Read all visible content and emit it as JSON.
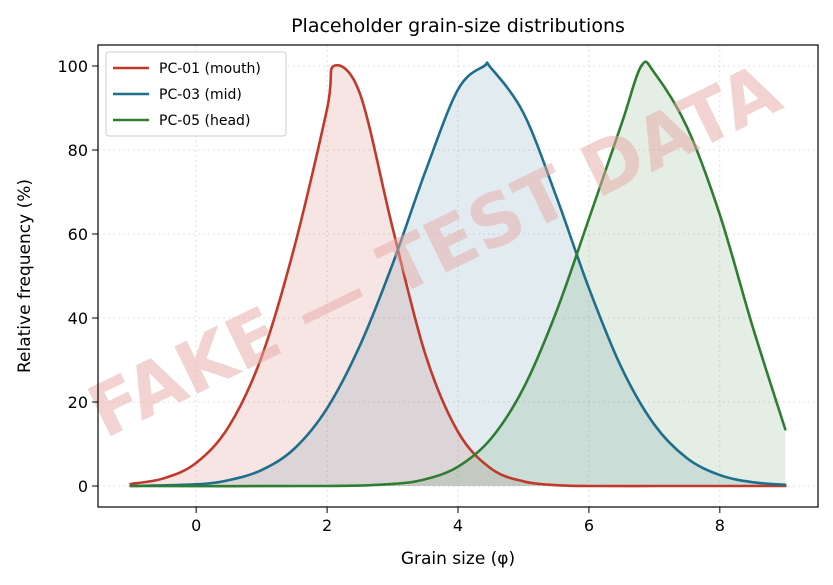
{
  "chart_data": {
    "type": "area",
    "title": "Placeholder grain-size distributions",
    "xlabel": "Grain size (φ)",
    "ylabel": "Relative frequency (%)",
    "xlim": [
      -1.5,
      9.5
    ],
    "ylim": [
      -5,
      105
    ],
    "xticks": [
      0,
      2,
      4,
      6,
      8
    ],
    "yticks": [
      0,
      20,
      40,
      60,
      80,
      100
    ],
    "x_range": [
      -1,
      9
    ],
    "grid": true,
    "legend_position": "top-left",
    "watermark": "FAKE — TEST DATA",
    "series": [
      {
        "name": "PC-01 (mouth)",
        "color": "#c0392b",
        "fill": "#f6dede",
        "x": [
          -1,
          -0.5,
          0,
          0.5,
          1,
          1.5,
          2,
          2.1,
          2.5,
          3,
          3.5,
          4,
          4.5,
          5,
          5.5,
          6,
          7,
          8,
          9
        ],
        "y": [
          0.5,
          1.8,
          5.5,
          14.2,
          30.8,
          56.9,
          89.8,
          100,
          93.5,
          61.5,
          31.4,
          12.9,
          4.2,
          1.1,
          0.2,
          0,
          0,
          0,
          0
        ]
      },
      {
        "name": "PC-03 (mid)",
        "color": "#1f6e8c",
        "fill": "#dce9ef",
        "x": [
          -1,
          0,
          0.5,
          1,
          1.5,
          2,
          2.5,
          3,
          3.5,
          4,
          4.4,
          4.5,
          5,
          5.5,
          6,
          6.5,
          7,
          7.5,
          8,
          8.5,
          9
        ],
        "y": [
          0,
          0.4,
          1.4,
          3.8,
          8.9,
          18.5,
          33.4,
          52.8,
          74.8,
          94.4,
          100,
          99.6,
          88.8,
          69.0,
          47.1,
          28.1,
          14.6,
          6.6,
          2.6,
          0.9,
          0.3
        ]
      },
      {
        "name": "PC-05 (head)",
        "color": "#2e7d32",
        "fill": "#e1ede1",
        "x": [
          -1,
          2,
          3,
          3.5,
          4,
          4.5,
          5,
          5.5,
          6,
          6.5,
          6.8,
          7,
          7.5,
          8,
          8.5,
          9
        ],
        "y": [
          0,
          0,
          0.5,
          1.6,
          4.6,
          11.2,
          23.3,
          41.4,
          63.6,
          86.3,
          100,
          98.4,
          85.4,
          64.6,
          38.0,
          13.5
        ]
      }
    ]
  }
}
